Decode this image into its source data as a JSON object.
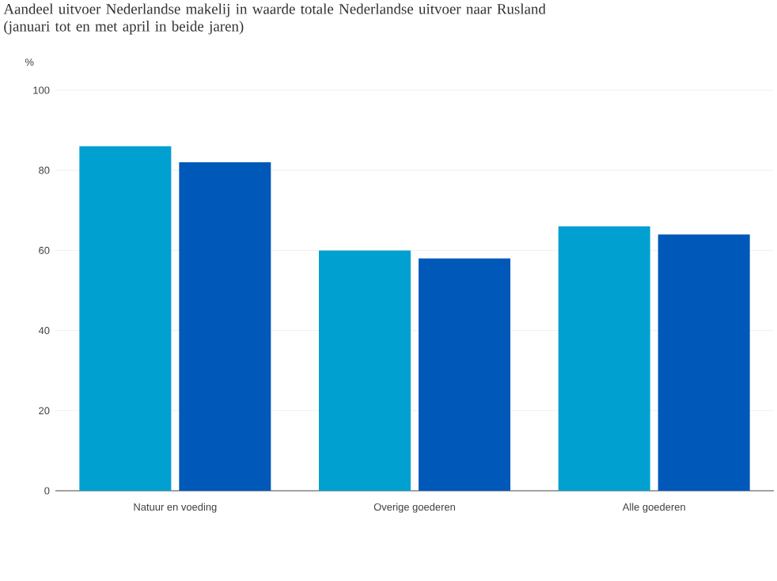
{
  "chart_data": {
    "type": "bar",
    "title": "Aandeel uitvoer Nederlandse makelij in waarde totale Nederlandse uitvoer naar Rusland",
    "subtitle": "(januari tot en met april in beide jaren)",
    "ylabel": "%",
    "categories": [
      "Natuur en voeding",
      "Overige goederen",
      "Alle goederen"
    ],
    "series": [
      {
        "color": "#00a0d0",
        "values": [
          86,
          60,
          66
        ]
      },
      {
        "color": "#0058b8",
        "values": [
          82,
          58,
          64
        ]
      }
    ],
    "ylim": [
      0,
      100
    ],
    "yticks": [
      0,
      20,
      40,
      60,
      80,
      100
    ],
    "grid": "y"
  }
}
